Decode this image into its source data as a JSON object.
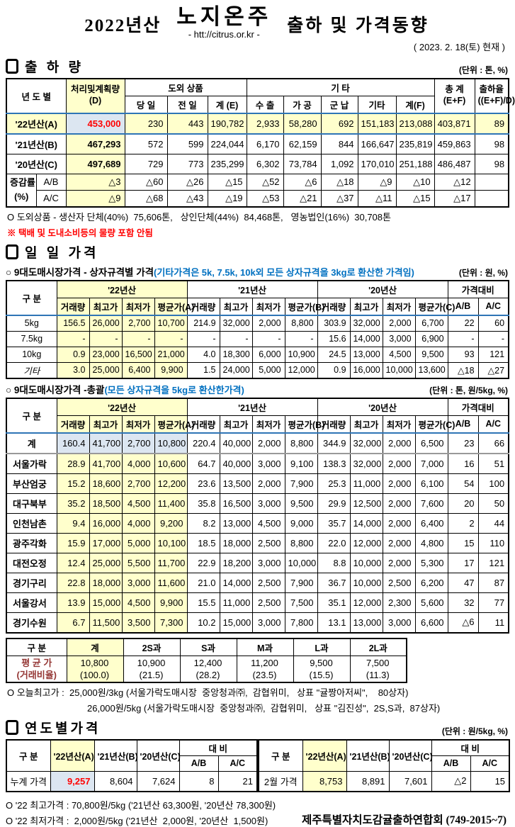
{
  "colors": {
    "highlight_yellow": "#FFFFCC",
    "highlight_blue": "#DCE6F1",
    "accent_red": "#FF0000",
    "note_blue": "#0070C0",
    "border_blue": "#2E75B6"
  },
  "header": {
    "year": "2022년산",
    "product": "노지온주",
    "url": "- htt://citrus.or.kr -",
    "tail": "출하 및 가격동향",
    "date": "( 2023. 2. 18(토) 현재 )"
  },
  "shipment": {
    "title": "출 하 량",
    "unit": "(단위 : 톤, %)",
    "head": {
      "col_year": "년 도 별",
      "plan1": "처리및계획량",
      "plan2": "(D)",
      "grp_island": "도외 상품",
      "day": "당 일",
      "prev": "전 일",
      "sumE": "계 (E)",
      "grp_etc": "기         타",
      "exp": "수 출",
      "proc": "가 공",
      "mil": "군 납",
      "etc": "기타",
      "sumF": "계(F)",
      "total1": "총  계",
      "total2": "(E+F)",
      "rate1": "출하율",
      "rate2": "((E+F)/D)"
    },
    "rows": [
      {
        "cls": "a",
        "cells": [
          {
            "t": "'22년산(A)",
            "cs": 2,
            "cl": "lbl"
          },
          "453,000",
          "230",
          "443",
          "190,782",
          "2,933",
          "58,280",
          "692",
          "151,183",
          "213,088",
          "403,871",
          "89"
        ]
      },
      {
        "cells": [
          {
            "t": "'21년산(B)",
            "cs": 2,
            "cl": "lbl"
          },
          {
            "t": "467,293",
            "cl": "yl b"
          },
          "572",
          "599",
          "224,044",
          "6,170",
          "62,159",
          "844",
          "166,647",
          "235,819",
          "459,863",
          "98"
        ]
      },
      {
        "cells": [
          {
            "t": "'20년산(C)",
            "cs": 2,
            "cl": "lbl"
          },
          {
            "t": "497,689",
            "cl": "yl b"
          },
          "729",
          "773",
          "235,299",
          "6,302",
          "73,784",
          "1,092",
          "170,010",
          "251,188",
          "486,487",
          "98"
        ]
      },
      {
        "cls": "ch",
        "cells": [
          {
            "t": "증감률",
            "t2": "(%)",
            "rs": 2,
            "cl": "chlbl"
          },
          {
            "t": "A/B",
            "cl": "c"
          },
          {
            "t": "△3",
            "cl": "yl"
          },
          "△60",
          "△26",
          "△15",
          "△52",
          "△6",
          "△18",
          "△9",
          "△10",
          "△12",
          ""
        ]
      },
      {
        "cls": "ch",
        "cells": [
          {
            "t": "A/C",
            "cl": "c"
          },
          {
            "t": "△9",
            "cl": "yl"
          },
          "△68",
          "△43",
          "△19",
          "△53",
          "△21",
          "△37",
          "△11",
          "△15",
          "△17",
          ""
        ]
      }
    ],
    "note1": "O 도외상품 - 생산자 단체(40%)  75,606톤,   상인단체(44%)  84,468톤,   영농법인(16%)  30,708톤",
    "note2": "※ 택배 및 도내소비등의 물량 포함 안됨"
  },
  "daily": {
    "title": "일 일 가격",
    "head": {
      "col": "구  분",
      "y22": "'22년산",
      "y21": "'21년산",
      "y20": "'20년산",
      "cmp": "가격대비",
      "vol": "거래량",
      "hi": "최고가",
      "lo": "최저가",
      "avgA": "평균가(A)",
      "avgB": "평균가(B)",
      "avgC": "평균가(C)",
      "ab": "A/B",
      "ac": "A/C"
    },
    "bysize": {
      "label": "○ 9대도매시장가격 - 상자규격별 가격",
      "note": "(기타가격은 5k, 7.5k, 10k외 모든 상자규격을 3kg로 환산한 가격임)",
      "unit": "(단위 : 원, %)",
      "rows": [
        {
          "cells": [
            {
              "t": "5kg",
              "cl": "c"
            },
            "156.5",
            "26,000",
            "2,700",
            "10,700",
            "214.9",
            "32,000",
            "2,000",
            "8,800",
            "303.9",
            "32,000",
            "2,000",
            "6,700",
            "22",
            "60"
          ]
        },
        {
          "cells": [
            {
              "t": "7.5kg",
              "cl": "c"
            },
            "-",
            "-",
            "-",
            "-",
            "-",
            "-",
            "-",
            "-",
            "15.6",
            "14,000",
            "3,000",
            "6,900",
            "-",
            "-"
          ]
        },
        {
          "cells": [
            {
              "t": "10kg",
              "cl": "c"
            },
            "0.9",
            "23,000",
            "16,500",
            "21,000",
            "4.0",
            "18,300",
            "6,000",
            "10,900",
            "24.5",
            "13,000",
            "4,500",
            "9,500",
            "93",
            "121"
          ]
        },
        {
          "cells": [
            {
              "t": "기타",
              "cl": "c it"
            },
            "3.0",
            "25,000",
            "6,400",
            "9,900",
            "1.5",
            "24,000",
            "5,000",
            "12,000",
            "0.9",
            "16,000",
            "10,000",
            "13,600",
            "△18",
            "△27"
          ]
        }
      ]
    },
    "overall": {
      "label": "○ 9대도매시장가격 -총괄",
      "note": "(모든 상자규격을 5kg로 환산한가격)",
      "unit": "(단위 : 톤, 원/5kg, %)",
      "rows": [
        {
          "cls": "sum",
          "cells": [
            {
              "t": "계",
              "cl": "c b"
            },
            "160.4",
            "41,700",
            "2,700",
            "10,800",
            "220.4",
            "40,000",
            "2,000",
            "8,800",
            "344.9",
            "32,000",
            "2,000",
            "6,500",
            "23",
            "66"
          ]
        },
        {
          "cells": [
            {
              "t": "서울가락",
              "cl": "j"
            },
            "28.9",
            "41,700",
            "4,000",
            "10,600",
            "64.7",
            "40,000",
            "3,000",
            "9,100",
            "138.3",
            "32,000",
            "2,000",
            "7,000",
            "16",
            "51"
          ]
        },
        {
          "cells": [
            {
              "t": "부산엄궁",
              "cl": "j"
            },
            "15.2",
            "18,600",
            "2,700",
            "12,200",
            "23.6",
            "13,500",
            "2,000",
            "7,900",
            "25.3",
            "11,000",
            "2,000",
            "6,100",
            "54",
            "100"
          ]
        },
        {
          "cells": [
            {
              "t": "대구북부",
              "cl": "j"
            },
            "35.2",
            "18,500",
            "4,500",
            "11,400",
            "35.8",
            "16,500",
            "3,000",
            "9,500",
            "29.9",
            "12,500",
            "2,000",
            "7,600",
            "20",
            "50"
          ]
        },
        {
          "cells": [
            {
              "t": "인천남촌",
              "cl": "j"
            },
            "9.4",
            "16,000",
            "4,000",
            "9,200",
            "8.2",
            "13,000",
            "4,500",
            "9,000",
            "35.7",
            "14,000",
            "2,000",
            "6,400",
            "2",
            "44"
          ]
        },
        {
          "cells": [
            {
              "t": "광주각화",
              "cl": "j"
            },
            "15.9",
            "17,000",
            "5,000",
            "10,100",
            "18.5",
            "18,000",
            "2,500",
            "8,800",
            "22.0",
            "12,000",
            "2,000",
            "4,800",
            "15",
            "110"
          ]
        },
        {
          "cells": [
            {
              "t": "대전오정",
              "cl": "j"
            },
            "12.4",
            "25,000",
            "5,500",
            "11,700",
            "22.9",
            "18,200",
            "3,000",
            "10,000",
            "8.8",
            "10,000",
            "2,000",
            "5,300",
            "17",
            "121"
          ]
        },
        {
          "cells": [
            {
              "t": "경기구리",
              "cl": "j"
            },
            "22.8",
            "18,000",
            "3,000",
            "11,600",
            "21.0",
            "14,000",
            "2,500",
            "7,900",
            "36.7",
            "10,000",
            "2,500",
            "6,200",
            "47",
            "87"
          ]
        },
        {
          "cells": [
            {
              "t": "서울강서",
              "cl": "j"
            },
            "13.9",
            "15,000",
            "4,500",
            "9,900",
            "15.5",
            "11,000",
            "2,500",
            "7,500",
            "35.1",
            "12,000",
            "2,300",
            "5,600",
            "32",
            "77"
          ]
        },
        {
          "cells": [
            {
              "t": "경기수원",
              "cl": "j"
            },
            "6.7",
            "11,500",
            "3,500",
            "7,300",
            "10.2",
            "15,000",
            "3,000",
            "7,800",
            "13.1",
            "13,000",
            "3,000",
            "6,600",
            "△6",
            "11"
          ]
        }
      ]
    },
    "size_table": {
      "head": [
        "구  분",
        "계",
        "2S과",
        "S과",
        "M과",
        "L과",
        "2L과"
      ],
      "rows": [
        {
          "cells": [
            {
              "t": "평 균 가",
              "t2": "(거래비율)",
              "cl": "mlbl"
            },
            {
              "t": "10,800",
              "t2": "(100.0)"
            },
            {
              "t": "10,900",
              "t2": "(21.5)"
            },
            {
              "t": "12,400",
              "t2": "(28.2)"
            },
            {
              "t": "11,200",
              "t2": "(23.5)"
            },
            {
              "t": "9,500",
              "t2": "(15.5)"
            },
            {
              "t": "7,500",
              "t2": "(11.3)"
            }
          ]
        }
      ]
    },
    "note1": "O 오늘최고가 :  25,000원/3kg (서울가락도매시장  중앙청과㈜,  감협위미,   상표 \"귤짱아저씨\",    80상자)",
    "note2": "26,000원/5kg (서울가락도매시장  중앙청과㈜,  감협위미,   상표 \"김진성\",  2S,S과,  87상자)"
  },
  "yearly": {
    "title": "연도별가격",
    "unit": "(단위 : 원/5kg, %)",
    "head": {
      "col": "구      분",
      "a": "'22년산(A)",
      "b": "'21년산(B)",
      "c": "'20년산(C)",
      "cmp": "대      비",
      "ab": "A/B",
      "ac": "A/C"
    },
    "left_rows": [
      {
        "cells": [
          {
            "t": "누계 가격",
            "cl": "c"
          },
          {
            "t": "9,257",
            "cl": "bl redb"
          },
          "8,604",
          "7,624",
          "8",
          "21"
        ]
      }
    ],
    "right_rows": [
      {
        "cells": [
          {
            "t": "2월 가격",
            "cl": "c"
          },
          {
            "t": "8,753",
            "cl": "yl"
          },
          "8,891",
          "7,601",
          "△2",
          "15"
        ]
      }
    ]
  },
  "footer": {
    "line1": "O '22 최고가격 : 70,800원/5kg ('21년산 63,300원, '20년산 78,300원)",
    "line2": "O '22 최저가격 :  2,000원/5kg ('21년산  2,000원, '20년산  1,500원)",
    "org": "제주특별자치도감귤출하연합회 (749-2015~7)"
  }
}
